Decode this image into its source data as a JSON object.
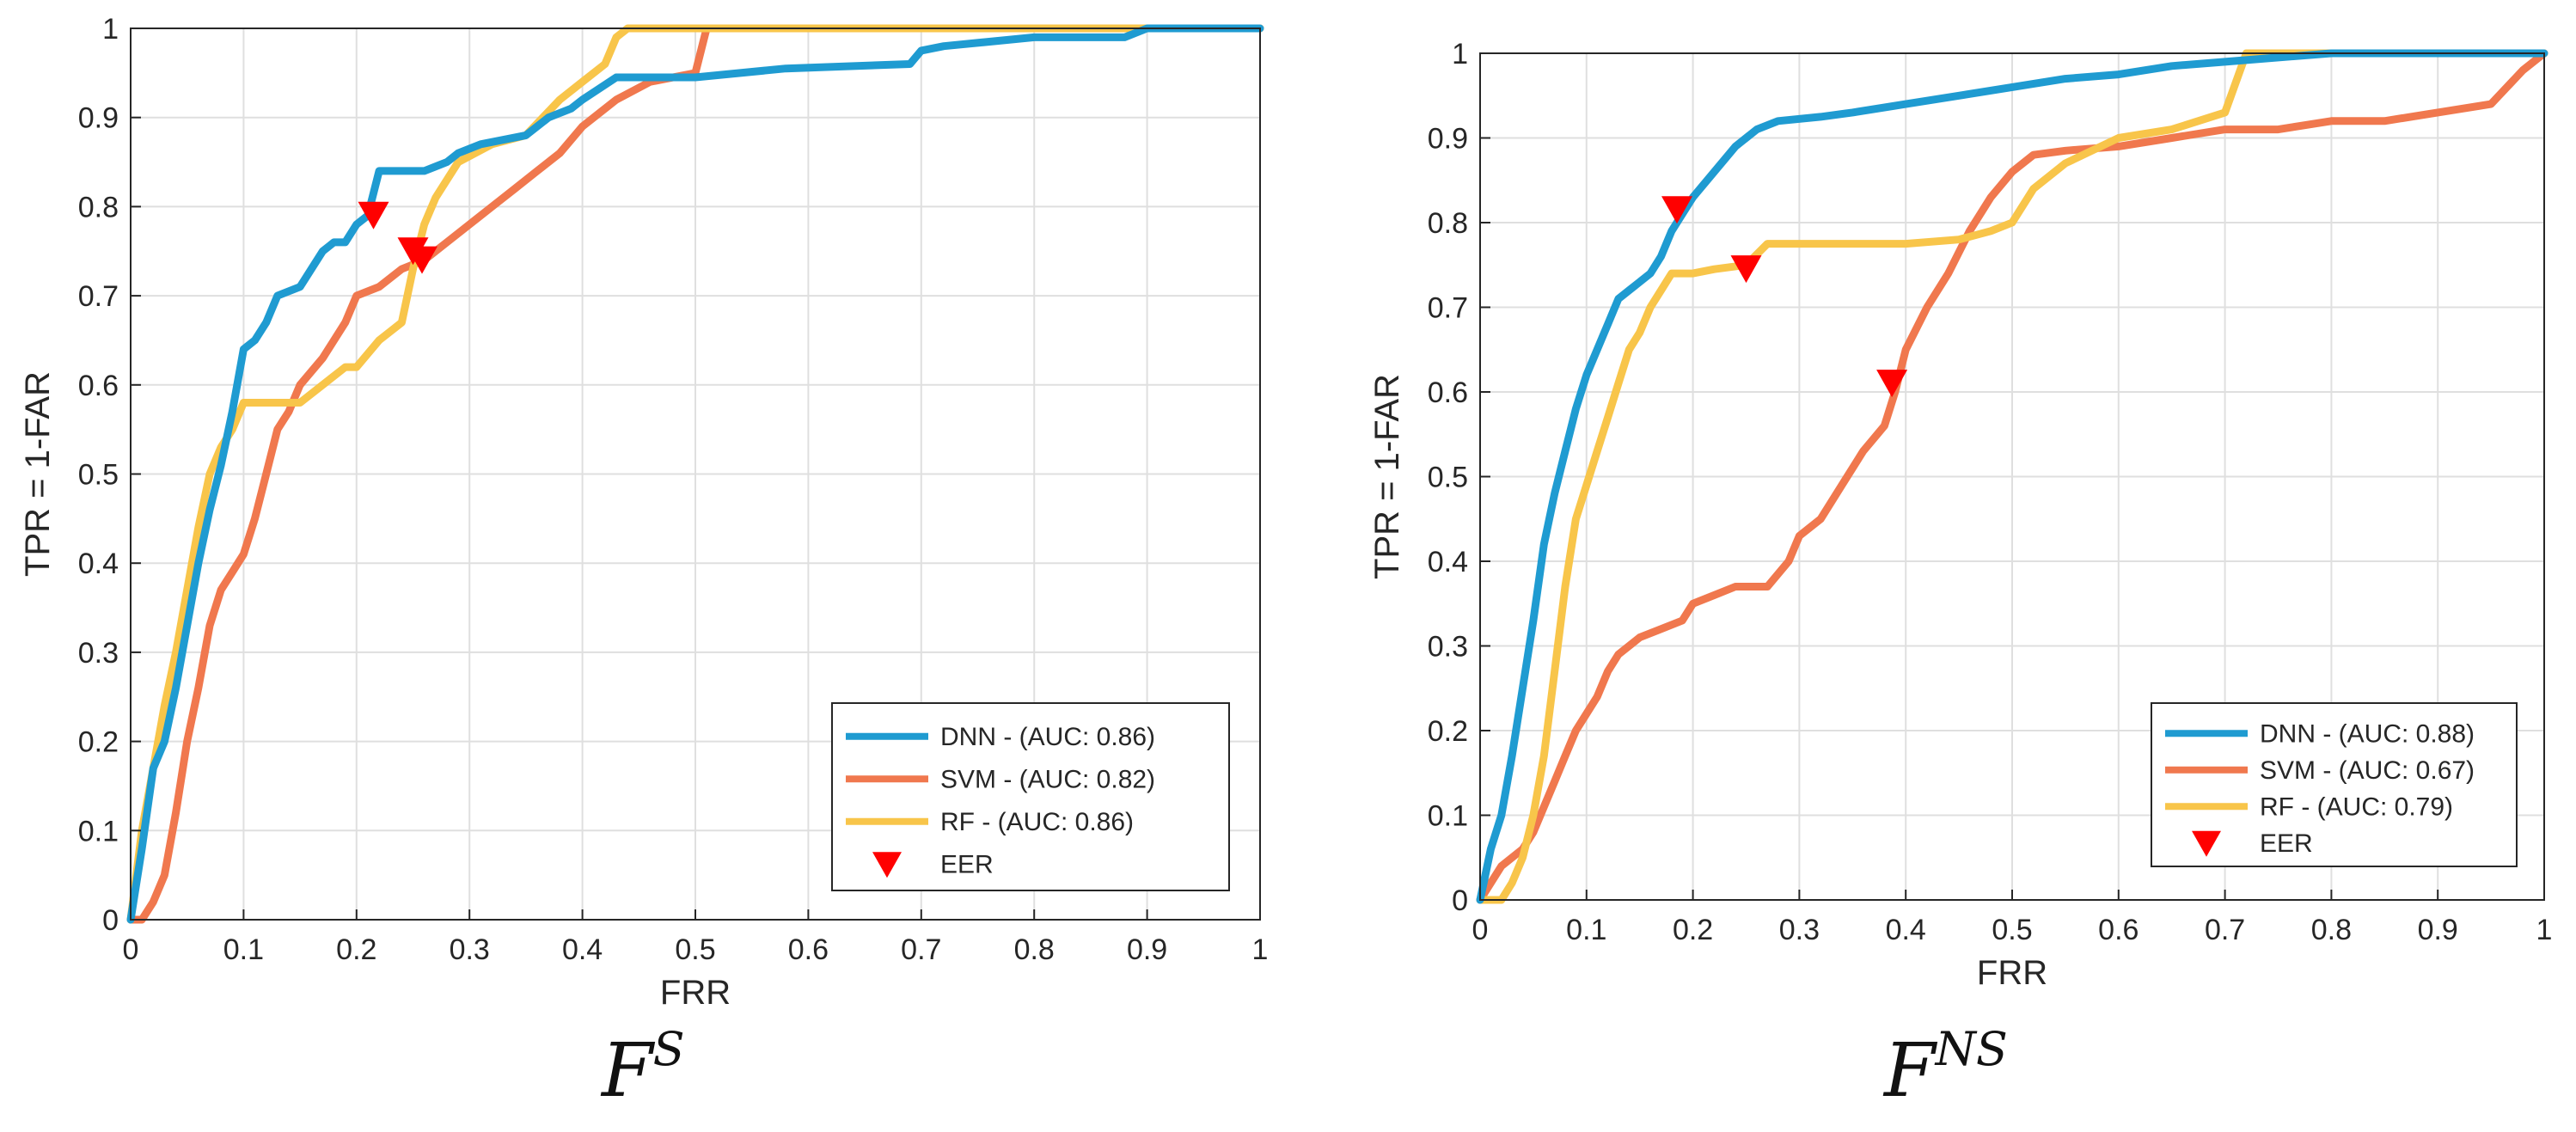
{
  "chart_data": [
    {
      "type": "line",
      "caption_base": "F",
      "caption_sup": "S",
      "xlabel": "FRR",
      "ylabel": "TPR = 1-FAR",
      "xlim": [
        0,
        1
      ],
      "ylim": [
        0,
        1
      ],
      "x_ticks": [
        "0",
        "0.1",
        "0.2",
        "0.3",
        "0.4",
        "0.5",
        "0.6",
        "0.7",
        "0.8",
        "0.9",
        "1"
      ],
      "y_ticks": [
        "0",
        "0.1",
        "0.2",
        "0.3",
        "0.4",
        "0.5",
        "0.6",
        "0.7",
        "0.8",
        "0.9",
        "1"
      ],
      "grid": true,
      "legend_position": "bottom-right",
      "series": [
        {
          "name": "DNN - (AUC: 0.86)",
          "color": "#1f9bd1",
          "x": [
            0,
            0.01,
            0.02,
            0.03,
            0.04,
            0.05,
            0.06,
            0.07,
            0.08,
            0.09,
            0.1,
            0.11,
            0.12,
            0.13,
            0.15,
            0.17,
            0.18,
            0.19,
            0.2,
            0.21,
            0.22,
            0.26,
            0.28,
            0.29,
            0.31,
            0.35,
            0.37,
            0.39,
            0.4,
            0.43,
            0.5,
            0.58,
            0.69,
            0.7,
            0.72,
            0.8,
            0.88,
            0.9,
            1
          ],
          "y": [
            0,
            0.08,
            0.17,
            0.2,
            0.26,
            0.33,
            0.4,
            0.46,
            0.51,
            0.57,
            0.64,
            0.65,
            0.67,
            0.7,
            0.71,
            0.75,
            0.76,
            0.76,
            0.78,
            0.79,
            0.84,
            0.84,
            0.85,
            0.86,
            0.87,
            0.88,
            0.9,
            0.91,
            0.92,
            0.945,
            0.945,
            0.955,
            0.96,
            0.975,
            0.98,
            0.99,
            0.99,
            1,
            1
          ]
        },
        {
          "name": "SVM - (AUC: 0.82)",
          "color": "#f0784e",
          "x": [
            0,
            0.01,
            0.02,
            0.03,
            0.04,
            0.05,
            0.06,
            0.07,
            0.08,
            0.09,
            0.1,
            0.11,
            0.12,
            0.13,
            0.14,
            0.15,
            0.17,
            0.19,
            0.2,
            0.22,
            0.24,
            0.26,
            0.28,
            0.3,
            0.32,
            0.34,
            0.36,
            0.38,
            0.4,
            0.43,
            0.46,
            0.5,
            0.51,
            0.55,
            1
          ],
          "y": [
            0,
            0,
            0.02,
            0.05,
            0.12,
            0.2,
            0.26,
            0.33,
            0.37,
            0.39,
            0.41,
            0.45,
            0.5,
            0.55,
            0.57,
            0.6,
            0.63,
            0.67,
            0.7,
            0.71,
            0.73,
            0.74,
            0.76,
            0.78,
            0.8,
            0.82,
            0.84,
            0.86,
            0.89,
            0.92,
            0.94,
            0.95,
            1,
            1,
            1
          ]
        },
        {
          "name": "RF - (AUC: 0.86)",
          "color": "#f8c54a",
          "x": [
            0,
            0.01,
            0.02,
            0.03,
            0.04,
            0.05,
            0.06,
            0.07,
            0.08,
            0.09,
            0.1,
            0.15,
            0.17,
            0.19,
            0.2,
            0.22,
            0.24,
            0.25,
            0.26,
            0.27,
            0.29,
            0.32,
            0.35,
            0.38,
            0.4,
            0.42,
            0.43,
            0.44,
            0.5,
            1
          ],
          "y": [
            0,
            0.1,
            0.17,
            0.24,
            0.3,
            0.37,
            0.44,
            0.5,
            0.53,
            0.55,
            0.58,
            0.58,
            0.6,
            0.62,
            0.62,
            0.65,
            0.67,
            0.73,
            0.78,
            0.81,
            0.85,
            0.87,
            0.88,
            0.92,
            0.94,
            0.96,
            0.99,
            1,
            1,
            1
          ]
        }
      ],
      "eer": {
        "name": "EER",
        "color": "#ff0000",
        "points": [
          {
            "x": 0.215,
            "y": 0.79
          },
          {
            "x": 0.25,
            "y": 0.75
          },
          {
            "x": 0.258,
            "y": 0.74
          }
        ]
      }
    },
    {
      "type": "line",
      "caption_base": "F",
      "caption_sup": "NS",
      "xlabel": "FRR",
      "ylabel": "TPR = 1-FAR",
      "xlim": [
        0,
        1
      ],
      "ylim": [
        0,
        1
      ],
      "x_ticks": [
        "0",
        "0.1",
        "0.2",
        "0.3",
        "0.4",
        "0.5",
        "0.6",
        "0.7",
        "0.8",
        "0.9",
        "1"
      ],
      "y_ticks": [
        "0",
        "0.1",
        "0.2",
        "0.3",
        "0.4",
        "0.5",
        "0.6",
        "0.7",
        "0.8",
        "0.9",
        "1"
      ],
      "grid": true,
      "legend_position": "bottom-right",
      "series": [
        {
          "name": "DNN - (AUC: 0.88)",
          "color": "#1f9bd1",
          "x": [
            0,
            0.01,
            0.02,
            0.03,
            0.04,
            0.05,
            0.06,
            0.07,
            0.08,
            0.09,
            0.1,
            0.11,
            0.12,
            0.13,
            0.14,
            0.15,
            0.16,
            0.17,
            0.18,
            0.19,
            0.2,
            0.22,
            0.24,
            0.26,
            0.28,
            0.32,
            0.35,
            0.4,
            0.45,
            0.5,
            0.55,
            0.6,
            0.65,
            0.7,
            0.75,
            0.8,
            1
          ],
          "y": [
            0,
            0.06,
            0.1,
            0.17,
            0.25,
            0.33,
            0.42,
            0.48,
            0.53,
            0.58,
            0.62,
            0.65,
            0.68,
            0.71,
            0.72,
            0.73,
            0.74,
            0.76,
            0.79,
            0.81,
            0.83,
            0.86,
            0.89,
            0.91,
            0.92,
            0.925,
            0.93,
            0.94,
            0.95,
            0.96,
            0.97,
            0.975,
            0.985,
            0.99,
            0.995,
            1,
            1
          ]
        },
        {
          "name": "SVM - (AUC: 0.67)",
          "color": "#f0784e",
          "x": [
            0,
            0.02,
            0.04,
            0.05,
            0.06,
            0.07,
            0.08,
            0.09,
            0.1,
            0.11,
            0.12,
            0.13,
            0.15,
            0.17,
            0.19,
            0.2,
            0.22,
            0.24,
            0.27,
            0.29,
            0.3,
            0.32,
            0.34,
            0.36,
            0.38,
            0.39,
            0.4,
            0.42,
            0.44,
            0.46,
            0.48,
            0.5,
            0.52,
            0.55,
            0.6,
            0.65,
            0.7,
            0.75,
            0.8,
            0.85,
            0.9,
            0.95,
            0.98,
            1
          ],
          "y": [
            0,
            0.04,
            0.06,
            0.08,
            0.11,
            0.14,
            0.17,
            0.2,
            0.22,
            0.24,
            0.27,
            0.29,
            0.31,
            0.32,
            0.33,
            0.35,
            0.36,
            0.37,
            0.37,
            0.4,
            0.43,
            0.45,
            0.49,
            0.53,
            0.56,
            0.6,
            0.65,
            0.7,
            0.74,
            0.79,
            0.83,
            0.86,
            0.88,
            0.885,
            0.89,
            0.9,
            0.91,
            0.91,
            0.92,
            0.92,
            0.93,
            0.94,
            0.98,
            1
          ]
        },
        {
          "name": "RF - (AUC: 0.79)",
          "color": "#f8c54a",
          "x": [
            0,
            0.02,
            0.03,
            0.04,
            0.05,
            0.06,
            0.07,
            0.08,
            0.09,
            0.1,
            0.11,
            0.12,
            0.13,
            0.14,
            0.15,
            0.16,
            0.17,
            0.18,
            0.2,
            0.22,
            0.25,
            0.27,
            0.3,
            0.35,
            0.4,
            0.45,
            0.48,
            0.5,
            0.52,
            0.55,
            0.6,
            0.65,
            0.7,
            0.72,
            1
          ],
          "y": [
            0,
            0,
            0.02,
            0.05,
            0.1,
            0.17,
            0.27,
            0.37,
            0.45,
            0.49,
            0.53,
            0.57,
            0.61,
            0.65,
            0.67,
            0.7,
            0.72,
            0.74,
            0.74,
            0.745,
            0.75,
            0.775,
            0.775,
            0.775,
            0.775,
            0.78,
            0.79,
            0.8,
            0.84,
            0.87,
            0.9,
            0.91,
            0.93,
            1,
            1
          ]
        }
      ],
      "eer": {
        "name": "EER",
        "color": "#ff0000",
        "points": [
          {
            "x": 0.185,
            "y": 0.815
          },
          {
            "x": 0.25,
            "y": 0.745
          },
          {
            "x": 0.387,
            "y": 0.61
          }
        ]
      }
    }
  ]
}
